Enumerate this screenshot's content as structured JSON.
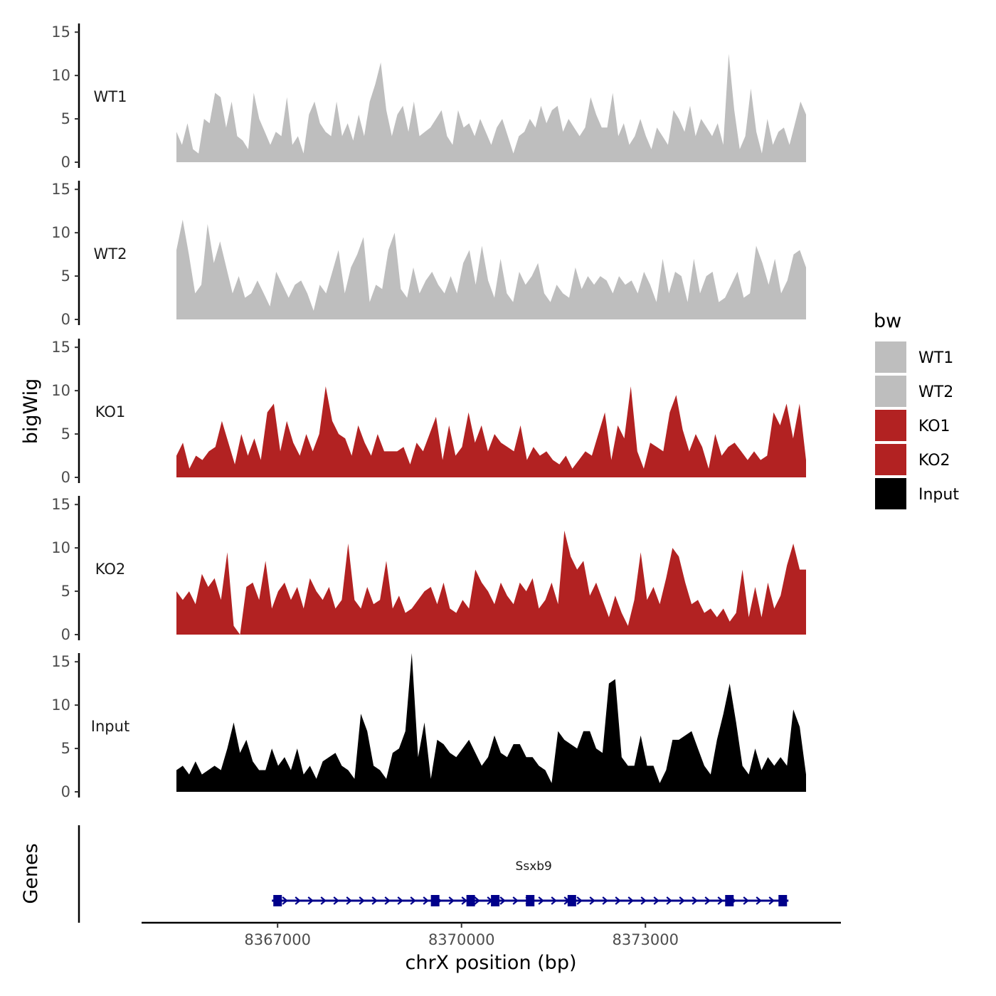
{
  "chart_data": {
    "type": "area",
    "title": "",
    "ylabel": "bigWig",
    "xlabel": "chrX position (bp)",
    "ylim": [
      0,
      16
    ],
    "y_ticks": [
      "0",
      "5",
      "10",
      "15"
    ],
    "x_ticks": [
      "8367000",
      "8370000",
      "8373000"
    ],
    "x_tick_values": [
      8367000,
      8370000,
      8373000
    ],
    "x_start": 8365350,
    "x_end": 8375620,
    "legend": {
      "title": "bw",
      "position": "right",
      "entries": [
        {
          "label": "WT1",
          "color": "#bebebe"
        },
        {
          "label": "WT2",
          "color": "#bebebe"
        },
        {
          "label": "KO1",
          "color": "#b22222"
        },
        {
          "label": "KO2",
          "color": "#b22222"
        },
        {
          "label": "Input",
          "color": "#000000"
        }
      ]
    },
    "series": [
      {
        "name": "WT1",
        "color": "#bebebe",
        "values": [
          3.5,
          2,
          4.5,
          1.5,
          1,
          5,
          4.5,
          8,
          7.5,
          4,
          7,
          3,
          2.5,
          1.5,
          8,
          5,
          3.5,
          2,
          3.5,
          3,
          7.5,
          2,
          3,
          1,
          5.5,
          7,
          4.5,
          3.5,
          3,
          7,
          3,
          4.5,
          2.5,
          5.5,
          3,
          7,
          9,
          11.5,
          6,
          3,
          5.5,
          6.5,
          3.5,
          7,
          3,
          3.5,
          4,
          5,
          6,
          3,
          2,
          6,
          4,
          4.5,
          3,
          5,
          3.5,
          2,
          4,
          5,
          3,
          1,
          3,
          3.5,
          5,
          4,
          6.5,
          4.5,
          6,
          6.5,
          3.5,
          5,
          4,
          3,
          4,
          7.5,
          5.5,
          4,
          4,
          8,
          3,
          4.5,
          2,
          3,
          5,
          3,
          1.5,
          4,
          3,
          2,
          6,
          5,
          3.5,
          6.5,
          3,
          5,
          4,
          3,
          4.5,
          2,
          12.5,
          6,
          1.5,
          3,
          8.5,
          3.5,
          1,
          5,
          2,
          3.5,
          4,
          2,
          4.5,
          7,
          5.5
        ]
      },
      {
        "name": "WT2",
        "color": "#bebebe",
        "values": [
          8,
          11.5,
          7.5,
          3,
          4,
          11,
          6.5,
          9,
          6,
          3,
          5,
          2.5,
          3,
          4.5,
          3,
          1.5,
          5.5,
          4,
          2.5,
          4,
          4.5,
          3,
          1,
          4,
          3,
          5.5,
          8,
          3,
          6,
          7.5,
          9.5,
          2,
          4,
          3.5,
          8,
          10,
          3.5,
          2.5,
          6,
          3,
          4.5,
          5.5,
          4,
          3,
          5,
          3,
          6.5,
          8,
          4,
          8.5,
          4.5,
          2.5,
          7,
          3,
          2,
          5.5,
          4,
          5,
          6.5,
          3,
          2,
          4,
          3,
          2.5,
          6,
          3.5,
          5,
          4,
          5,
          4.5,
          3,
          5,
          4,
          4.5,
          3,
          5.5,
          4,
          2,
          7,
          3,
          5.5,
          5,
          2,
          7,
          3,
          5,
          5.5,
          2,
          2.5,
          4,
          5.5,
          2.5,
          3,
          8.5,
          6.5,
          4,
          7,
          3,
          4.5,
          7.5,
          8,
          6
        ]
      },
      {
        "name": "KO1",
        "color": "#b22222",
        "values": [
          2.5,
          4,
          1,
          2.5,
          2,
          3,
          3.5,
          6.5,
          4,
          1.5,
          5,
          2.5,
          4.5,
          2,
          7.5,
          8.5,
          3,
          6.5,
          4,
          2.5,
          5,
          3,
          5,
          10.5,
          6.5,
          5,
          4.5,
          2.5,
          6,
          4,
          2.5,
          5,
          3,
          3,
          3,
          3.5,
          1.5,
          4,
          3,
          5,
          7,
          2,
          6,
          2.5,
          3.5,
          7.5,
          4,
          6,
          3,
          5,
          4,
          3.5,
          3,
          6,
          2,
          3.5,
          2.5,
          3,
          2,
          1.5,
          2.5,
          1,
          2,
          3,
          2.5,
          5,
          7.5,
          2,
          6,
          4.5,
          10.5,
          3,
          1,
          4,
          3.5,
          3,
          7.5,
          9.5,
          5.5,
          3,
          5,
          3.5,
          1,
          5,
          2.5,
          3.5,
          4,
          3,
          2,
          3,
          2,
          2.5,
          7.5,
          6,
          8.5,
          4.5,
          8.5,
          2
        ]
      },
      {
        "name": "KO2",
        "color": "#b22222",
        "values": [
          5,
          4,
          5,
          3.5,
          7,
          5.5,
          6.5,
          4,
          9.5,
          1,
          0,
          5.5,
          6,
          4,
          8.5,
          3,
          5,
          6,
          4,
          5.5,
          3,
          6.5,
          5,
          4,
          5.5,
          3,
          4,
          10.5,
          4,
          3,
          5.5,
          3.5,
          4,
          8.5,
          3,
          4.5,
          2.5,
          3,
          4,
          5,
          5.5,
          3.5,
          6,
          3,
          2.5,
          4,
          3,
          7.5,
          6,
          5,
          3.5,
          6,
          4.5,
          3.5,
          6,
          5,
          6.5,
          3,
          4,
          6,
          3.5,
          12,
          9,
          7.5,
          8.5,
          4.5,
          6,
          4,
          2,
          4.5,
          2.5,
          1,
          4,
          9.5,
          4,
          5.5,
          3.5,
          6.5,
          10,
          9,
          6,
          3.5,
          4,
          2.5,
          3,
          2,
          3,
          1.5,
          2.5,
          7.5,
          2,
          5.5,
          2,
          6,
          3,
          4.5,
          8,
          10.5,
          7.5,
          7.5
        ]
      },
      {
        "name": "Input",
        "color": "#000000",
        "values": [
          2.5,
          3,
          2,
          3.5,
          2,
          2.5,
          3,
          2.5,
          5,
          8,
          4.5,
          6,
          3.5,
          2.5,
          2.5,
          5,
          3,
          4,
          2.5,
          5,
          2,
          3,
          1.5,
          3.5,
          4,
          4.5,
          3,
          2.5,
          1.5,
          9,
          7,
          3,
          2.5,
          1.5,
          4.5,
          5,
          7,
          16,
          4,
          8,
          1.5,
          6,
          5.5,
          4.5,
          4,
          5,
          6,
          4.5,
          3,
          4,
          6.5,
          4.5,
          4,
          5.5,
          5.5,
          4,
          4,
          3,
          2.5,
          1,
          7,
          6,
          5.5,
          5,
          7,
          7,
          5,
          4.5,
          12.5,
          13,
          4,
          3,
          3,
          6.5,
          3,
          3,
          1,
          2.5,
          6,
          6,
          6.5,
          7,
          5,
          3,
          2,
          6,
          9,
          12.5,
          8,
          3,
          2,
          5,
          2.5,
          4,
          3,
          4,
          3,
          9.5,
          7.5,
          2
        ]
      }
    ],
    "genes": [
      {
        "name": "Ssxb9",
        "strand": "+",
        "start": 8367000,
        "end": 8375240,
        "exons": [
          8367000,
          8369570,
          8370150,
          8370550,
          8371120,
          8371800,
          8374370,
          8375240
        ]
      }
    ],
    "gene_track_label": "Genes"
  }
}
